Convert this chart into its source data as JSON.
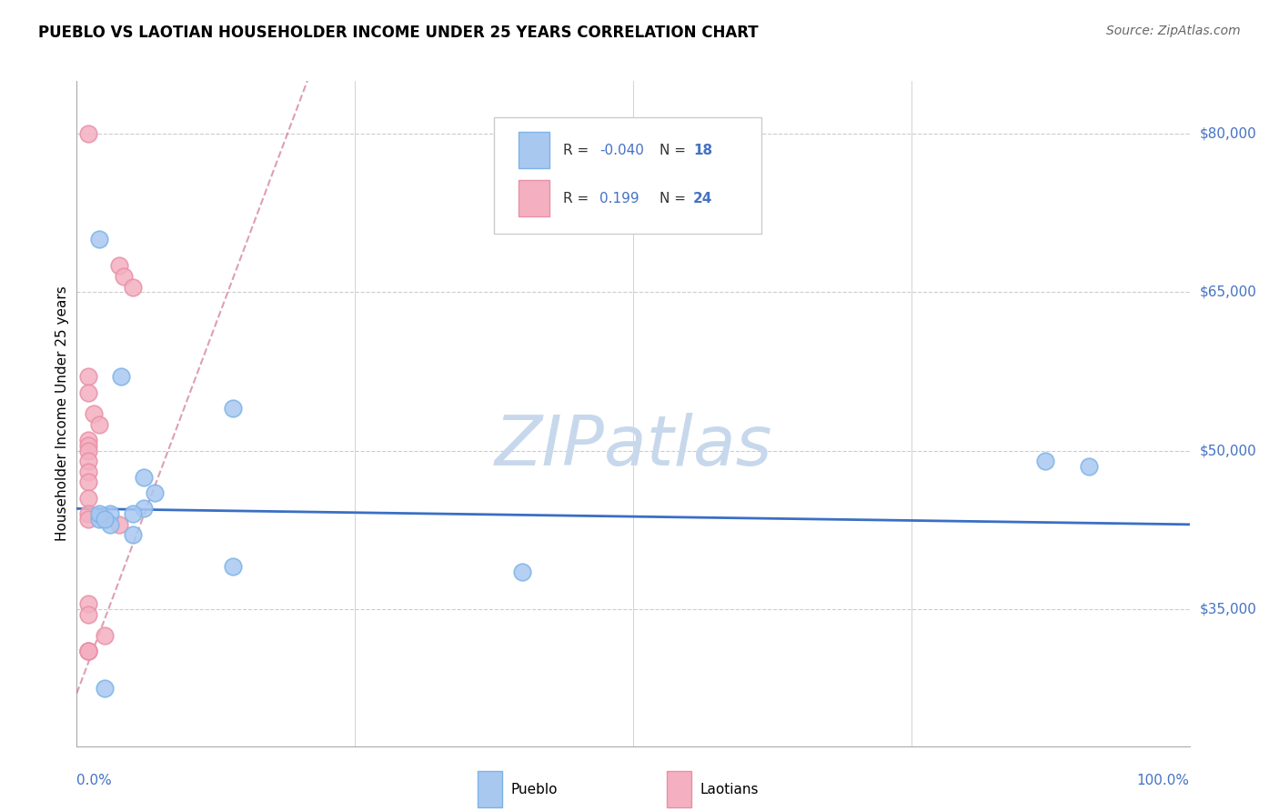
{
  "title": "PUEBLO VS LAOTIAN HOUSEHOLDER INCOME UNDER 25 YEARS CORRELATION CHART",
  "source": "Source: ZipAtlas.com",
  "ylabel": "Householder Income Under 25 years",
  "y_tick_labels": [
    "$80,000",
    "$65,000",
    "$50,000",
    "$35,000"
  ],
  "y_tick_values": [
    80000,
    65000,
    50000,
    35000
  ],
  "ylim": [
    22000,
    85000
  ],
  "xlim": [
    0.0,
    1.0
  ],
  "legend_pueblo_R": "-0.040",
  "legend_pueblo_N": "18",
  "legend_laotian_R": "0.199",
  "legend_laotian_N": "24",
  "pueblo_color": "#A8C8F0",
  "pueblo_edge_color": "#7EB3E8",
  "laotian_color": "#F4B0C0",
  "laotian_edge_color": "#E890A8",
  "blue_line_color": "#3A6FC4",
  "pink_line_color": "#C86080",
  "watermark_color": "#C8D8EC",
  "pueblo_x": [
    0.02,
    0.04,
    0.14,
    0.06,
    0.07,
    0.06,
    0.03,
    0.03,
    0.05,
    0.14,
    0.02,
    0.02,
    0.025,
    0.05,
    0.4,
    0.87,
    0.91,
    0.025
  ],
  "pueblo_y": [
    70000,
    57000,
    54000,
    47500,
    46000,
    44500,
    44000,
    43000,
    42000,
    39000,
    43500,
    44000,
    43500,
    44000,
    38500,
    49000,
    48500,
    27500
  ],
  "laotian_x": [
    0.01,
    0.038,
    0.042,
    0.05,
    0.01,
    0.01,
    0.015,
    0.02,
    0.01,
    0.01,
    0.01,
    0.01,
    0.01,
    0.01,
    0.01,
    0.01,
    0.01,
    0.038,
    0.01,
    0.01,
    0.025,
    0.01,
    0.01,
    0.01
  ],
  "laotian_y": [
    80000,
    67500,
    66500,
    65500,
    57000,
    55500,
    53500,
    52500,
    51000,
    50500,
    50000,
    49000,
    48000,
    47000,
    45500,
    44000,
    43500,
    43000,
    35500,
    34500,
    32500,
    31000,
    31000,
    31000
  ]
}
